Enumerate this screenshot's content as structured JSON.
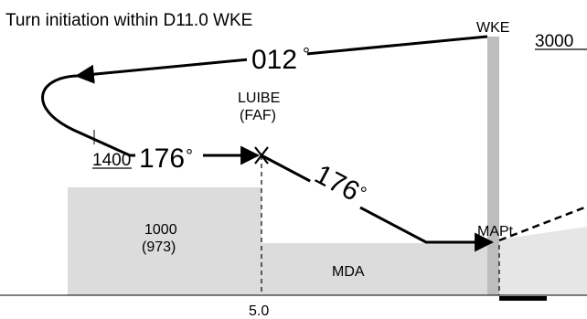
{
  "title": "Turn initiation within D11.0 WKE",
  "labels": {
    "wke": "WKE",
    "altitude_top": "3000",
    "track_outbound": "012",
    "track_inbound": "176",
    "track_descent": "176",
    "degree": "°",
    "fix_name": "LUIBE",
    "fix_type": "(FAF)",
    "altitude_turn": "1400",
    "obstacle_alt": "1000",
    "obstacle_height": "(973)",
    "mda": "MDA",
    "mapt": "MAPt",
    "distance": "5.0"
  },
  "colors": {
    "terrain": "#dcdcdc",
    "wke_bar": "#bdbdbd",
    "line": "#000000"
  }
}
